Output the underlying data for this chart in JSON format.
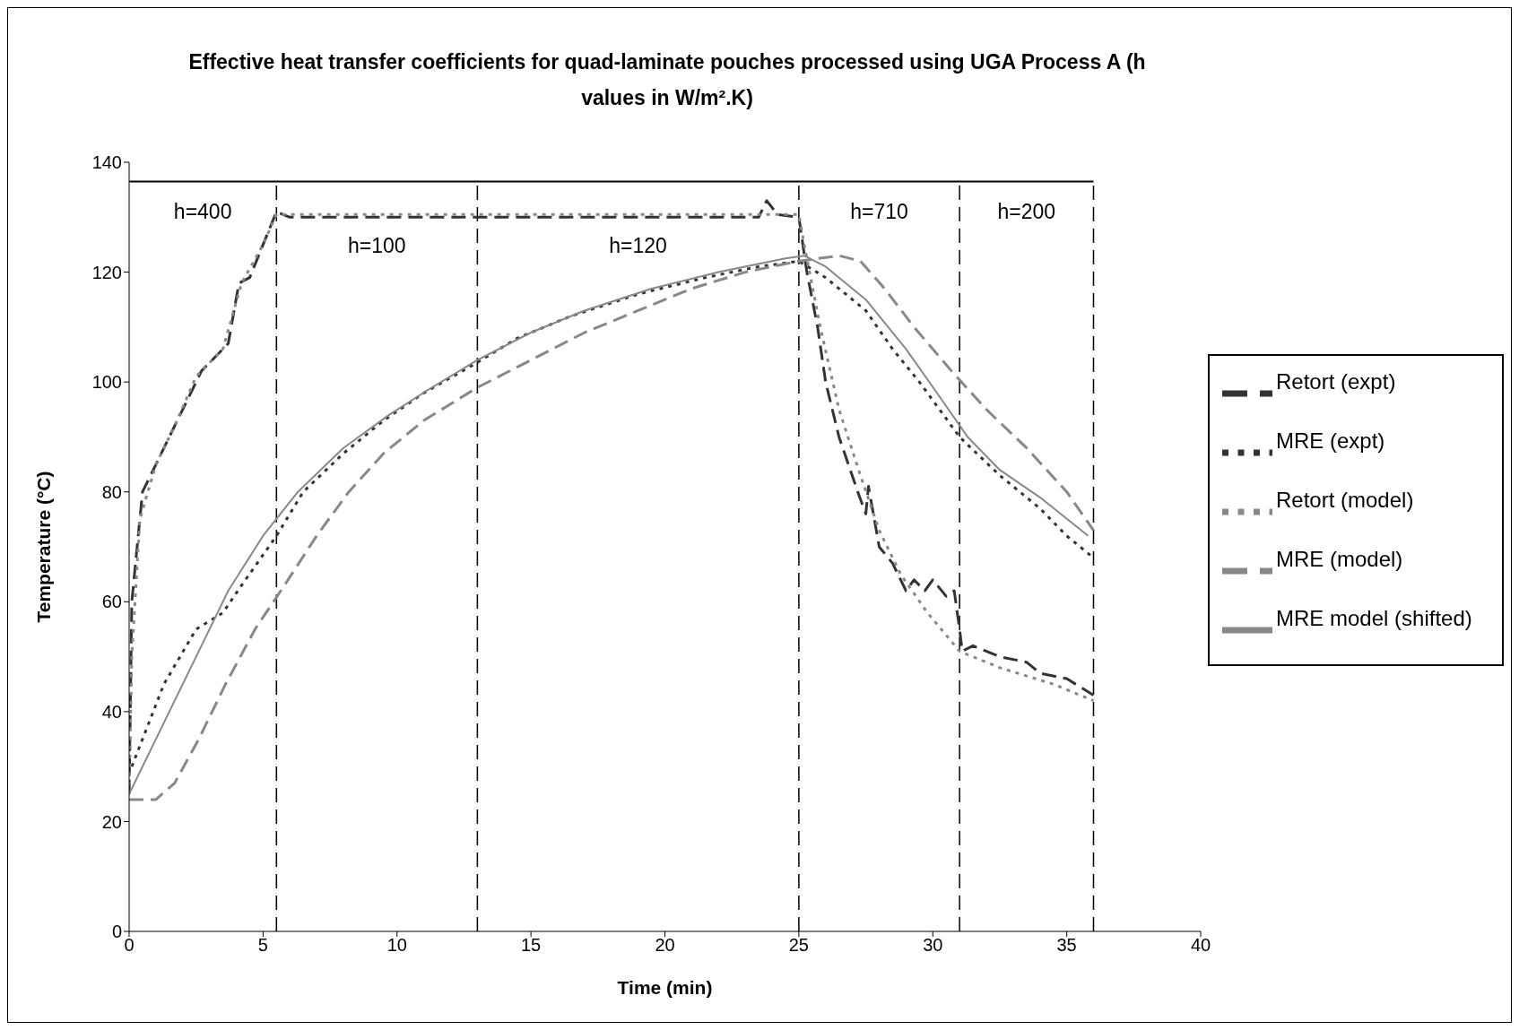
{
  "chart_data": {
    "type": "line",
    "title": "Effective heat transfer coefficients for quad-laminate pouches processed using UGA Process A (h values in W/m².K)",
    "xlabel": "Time (min)",
    "ylabel": "Temperature (°C)",
    "xlim": [
      0,
      40
    ],
    "xticks": [
      0,
      5,
      10,
      15,
      20,
      25,
      30,
      35,
      40
    ],
    "ylim": [
      0,
      140
    ],
    "yticks": [
      0,
      20,
      40,
      60,
      80,
      100,
      120,
      140
    ],
    "legend": "right",
    "series": [
      {
        "name": "Retort (expt)",
        "color": "#333333",
        "line_style": "dashed",
        "x": [
          0,
          0.1,
          0.2,
          0.5,
          1,
          1.5,
          2,
          2.7,
          3.3,
          3.7,
          4.1,
          4.5,
          5,
          5.5,
          6,
          8,
          10,
          12,
          14,
          16,
          18,
          20,
          22,
          23.5,
          23.8,
          24.2,
          25,
          25.3,
          25.7,
          26,
          26.5,
          27.2,
          27.5,
          27.6,
          28,
          28.5,
          29,
          29.3,
          29.7,
          30,
          30.5,
          30.8,
          31,
          31.1,
          31.5,
          32.5,
          33.5,
          34,
          35,
          36
        ],
        "values": [
          25,
          60,
          65,
          80,
          85,
          90,
          95,
          102,
          105,
          107,
          118,
          119,
          125,
          131,
          130,
          130,
          130,
          130,
          130,
          130,
          130,
          130,
          130,
          130,
          133,
          130.5,
          130,
          120,
          110,
          100,
          90,
          80,
          76,
          81,
          70,
          67,
          62,
          64,
          62,
          64,
          61,
          62,
          55,
          51,
          52,
          50,
          49,
          47,
          46,
          43
        ]
      },
      {
        "name": "MRE (expt)",
        "color": "#333333",
        "line_style": "dotted",
        "x": [
          0.1,
          0.5,
          1.3,
          2.5,
          3.5,
          4.2,
          5.5,
          6.5,
          8,
          9.5,
          11,
          12.8,
          14.5,
          16.5,
          19,
          21.5,
          23.5,
          25,
          26,
          27.5,
          28.5,
          29.5,
          31,
          32.5,
          34,
          35,
          36
        ],
        "values": [
          30,
          35,
          45,
          55,
          58,
          63,
          72,
          80,
          87,
          93,
          98,
          103,
          108,
          112,
          116,
          119,
          121,
          122,
          119,
          113,
          106,
          100,
          90,
          83,
          77,
          72,
          68
        ]
      },
      {
        "name": "Retort (model)",
        "color": "#888888",
        "line_style": "dotted",
        "x": [
          0,
          0.1,
          0.4,
          1,
          1.7,
          2.5,
          3.5,
          4.2,
          5,
          5.5,
          10,
          15,
          20,
          25,
          25.2,
          25.8,
          26.5,
          27.3,
          28,
          28.8,
          29.8,
          31,
          32.5,
          34.5,
          36
        ],
        "values": [
          25,
          50,
          75,
          85,
          92,
          101,
          106,
          118,
          125,
          130.5,
          130.5,
          130.5,
          130.5,
          130.5,
          125,
          110,
          95,
          83,
          73,
          65,
          58,
          51,
          48,
          45,
          42
        ]
      },
      {
        "name": "MRE (model)",
        "color": "#888888",
        "line_style": "dashed",
        "x": [
          0,
          1,
          1.7,
          2.6,
          3.6,
          4.7,
          5.8,
          7,
          8.2,
          9.5,
          11,
          13,
          15,
          17,
          19,
          21,
          23,
          25,
          26.5,
          27.3,
          28.2,
          29.3,
          30.7,
          32,
          33.5,
          35,
          36
        ],
        "values": [
          24,
          24,
          27,
          35,
          45,
          55,
          63,
          72,
          80,
          87,
          93,
          99,
          104,
          109,
          113,
          117,
          120,
          122,
          123,
          122,
          117,
          110,
          102,
          95,
          88,
          80,
          73
        ]
      },
      {
        "name": "MRE model (shifted)",
        "color": "#888888",
        "line_style": "solid",
        "x": [
          0,
          0.7,
          1.7,
          2.7,
          3.7,
          5,
          6.3,
          8,
          9.7,
          11.3,
          13,
          15,
          17,
          19.5,
          22,
          24.5,
          25.2,
          26,
          27.5,
          29,
          30.3,
          31.3,
          32.5,
          34,
          35.8
        ],
        "values": [
          25,
          32,
          42,
          52,
          62,
          72,
          80,
          88,
          94,
          99,
          104,
          109,
          113,
          117,
          120,
          122.5,
          123,
          121,
          115,
          106,
          97,
          90,
          84,
          79,
          72
        ]
      }
    ],
    "ref_lines": [
      {
        "axis": "x",
        "value": 5.5,
        "color": "#000000",
        "line_style": "dashed"
      },
      {
        "axis": "x",
        "value": 13,
        "color": "#000000",
        "line_style": "dashed"
      },
      {
        "axis": "x",
        "value": 25,
        "color": "#000000",
        "line_style": "dashed"
      },
      {
        "axis": "x",
        "value": 31,
        "color": "#000000",
        "line_style": "dashed"
      },
      {
        "axis": "x",
        "value": 36,
        "color": "#000000",
        "line_style": "dashed"
      },
      {
        "axis": "y",
        "value": 136.5,
        "color": "#000000",
        "line_style": "solid"
      }
    ],
    "annotations": [
      "h=400",
      "h=100",
      "h=120",
      "h=710",
      "h=200"
    ]
  }
}
